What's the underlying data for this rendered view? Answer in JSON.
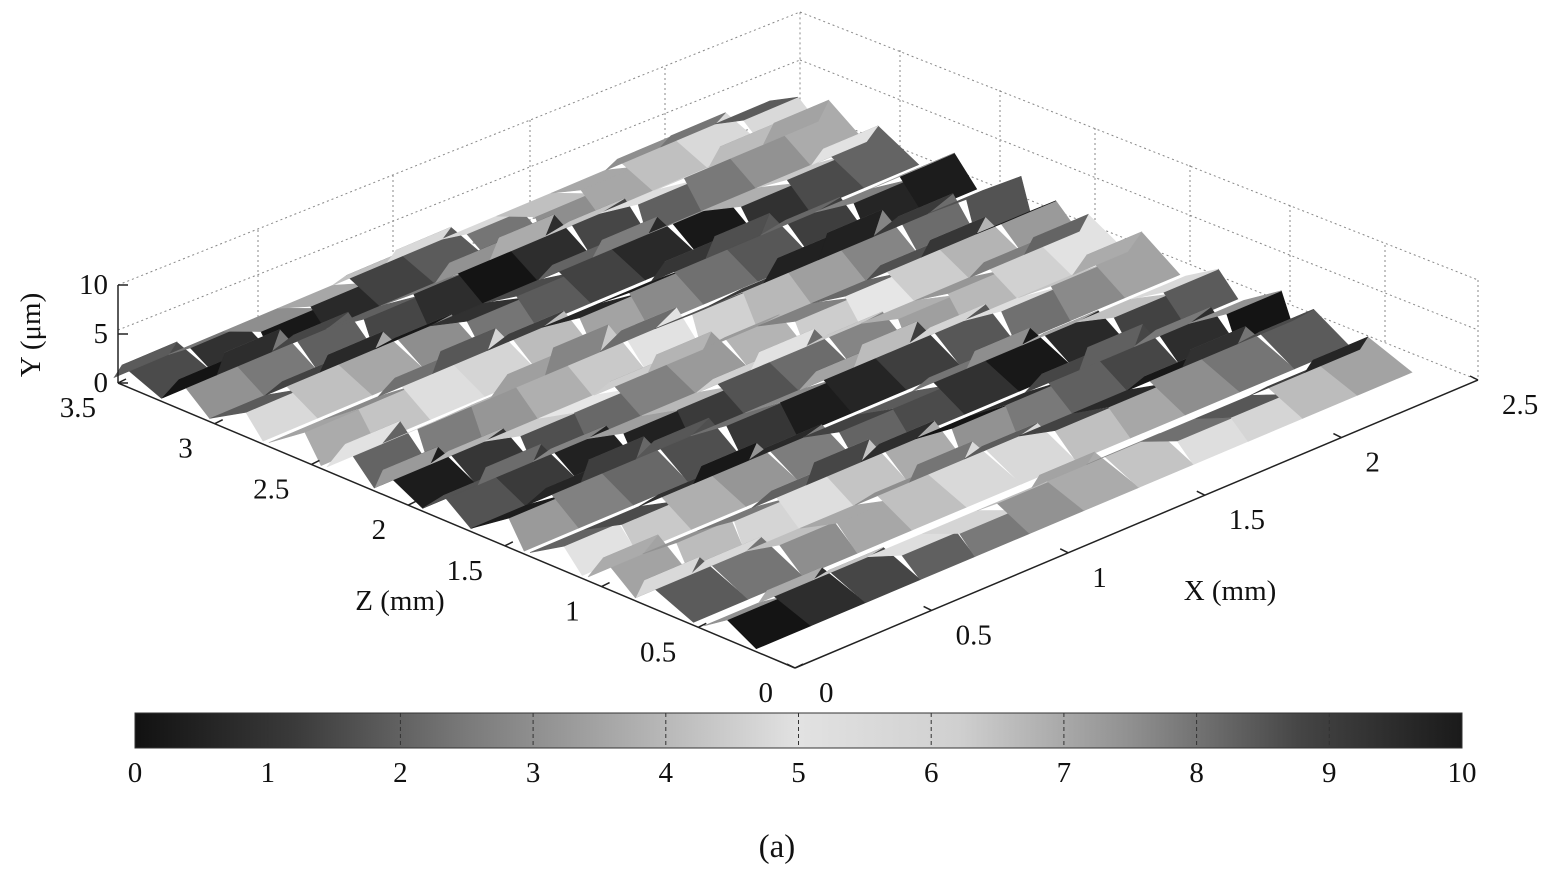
{
  "chart_data": {
    "type": "surface3d",
    "colormap": "gray (dark-light-dark)",
    "x_axis": {
      "label": "X (mm)",
      "range": [
        0,
        2.5
      ],
      "ticks": [
        "0",
        "0.5",
        "1",
        "1.5",
        "2",
        "2.5"
      ]
    },
    "z_axis": {
      "label": "Z (mm)",
      "range": [
        0,
        3.5
      ],
      "ticks": [
        "0",
        "0.5",
        "1",
        "1.5",
        "2",
        "2.5",
        "3",
        "3.5"
      ]
    },
    "y_axis": {
      "label": "Y (μm)",
      "range": [
        0,
        10
      ],
      "ticks": [
        "0",
        "5",
        "10"
      ]
    },
    "grid": true,
    "colorbar": {
      "placement": "bottom",
      "range": [
        0,
        10
      ],
      "ticks": [
        "0",
        "1",
        "2",
        "3",
        "4",
        "5",
        "6",
        "7",
        "8",
        "9",
        "10"
      ]
    },
    "surface": {
      "x_mm": [
        0,
        0.2,
        0.4,
        0.6,
        0.8,
        1.0,
        1.2,
        1.4,
        1.6,
        1.8,
        2.0,
        2.2,
        2.4
      ],
      "ridge_z_mm": [
        0.35,
        0.7,
        0.95,
        1.25,
        1.55,
        1.8,
        2.05,
        2.3,
        2.6,
        2.9,
        3.15,
        3.4
      ],
      "ridge_height_um": [
        2.0,
        2.5,
        3.0,
        2.5,
        3.0,
        2.5,
        2.5,
        3.5,
        3.0,
        2.5,
        3.0,
        2.0
      ]
    }
  },
  "caption": "(a)"
}
